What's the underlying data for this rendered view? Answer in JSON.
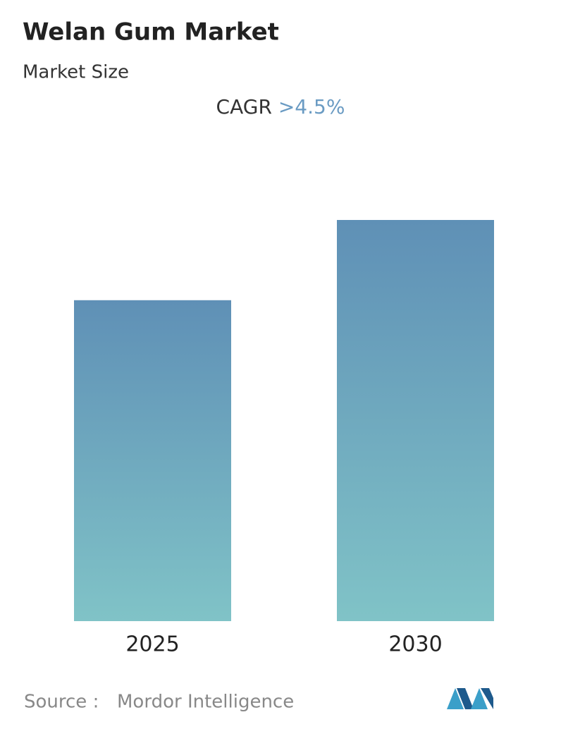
{
  "chart_data": {
    "type": "bar",
    "title": "Welan Gum Market",
    "subtitle": "Market Size",
    "cagr_label": "CAGR",
    "cagr_value": ">4.5%",
    "categories": [
      "2025",
      "2030"
    ],
    "values": [
      1,
      1.25
    ],
    "ylim": [
      0,
      1.25
    ],
    "color_top": "#5f90b6",
    "color_bottom": "#80c3c7",
    "source_label": "Source :",
    "source": "Mordor Intelligence"
  }
}
